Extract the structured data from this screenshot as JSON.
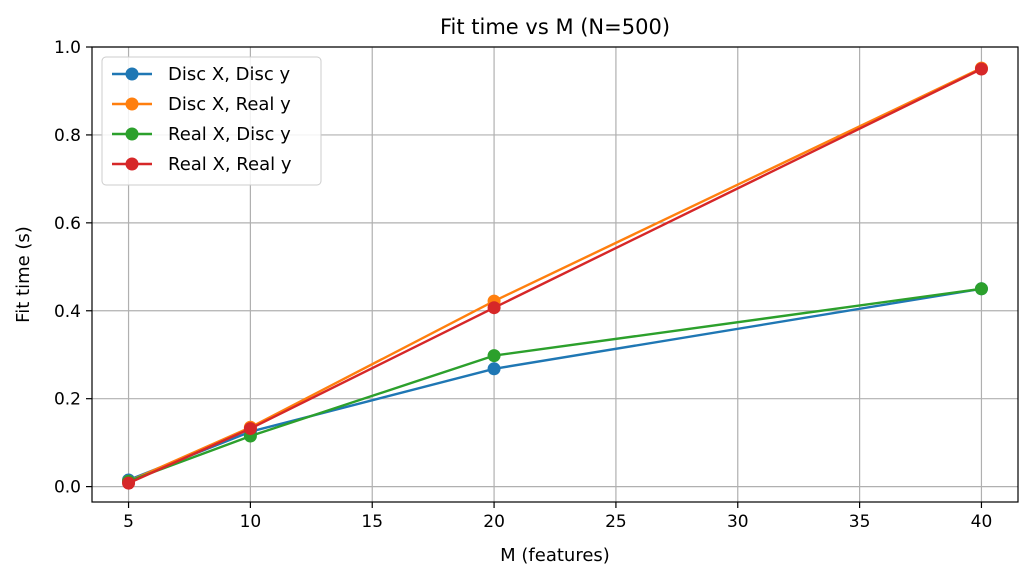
{
  "chart_data": {
    "type": "line",
    "title": "Fit time vs M (N=500)",
    "xlabel": "M (features)",
    "ylabel": "Fit time (s)",
    "xlim": [
      3.5,
      41.5
    ],
    "ylim": [
      -0.035,
      1.0
    ],
    "xticks": [
      5,
      10,
      15,
      20,
      25,
      30,
      35,
      40
    ],
    "yticks": [
      0.0,
      0.2,
      0.4,
      0.6,
      0.8,
      1.0
    ],
    "xtick_labels": [
      "5",
      "10",
      "15",
      "20",
      "25",
      "30",
      "35",
      "40"
    ],
    "ytick_labels": [
      "0.0",
      "0.2",
      "0.4",
      "0.6",
      "0.8",
      "1.0"
    ],
    "grid": true,
    "legend_position": "top-left",
    "x": [
      5,
      10,
      20,
      40
    ],
    "series": [
      {
        "name": "Disc X, Disc y",
        "color": "#1f77b4",
        "values": [
          0.015,
          0.125,
          0.268,
          0.45
        ]
      },
      {
        "name": "Disc X, Real y",
        "color": "#ff7f0e",
        "values": [
          0.012,
          0.135,
          0.422,
          0.952
        ]
      },
      {
        "name": "Real X, Disc y",
        "color": "#2ca02c",
        "values": [
          0.012,
          0.115,
          0.298,
          0.45
        ]
      },
      {
        "name": "Real X, Real y",
        "color": "#d62728",
        "values": [
          0.008,
          0.132,
          0.407,
          0.95
        ]
      }
    ]
  }
}
